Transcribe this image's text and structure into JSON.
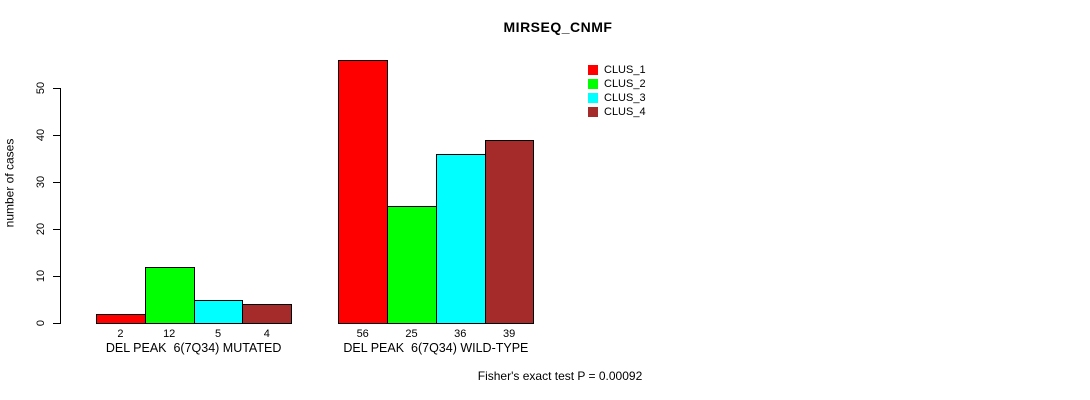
{
  "title": "MIRSEQ_CNMF",
  "annotation": "Fisher's exact test P = 0.00092",
  "chart_data": {
    "type": "bar",
    "title": "MIRSEQ_CNMF",
    "ylabel": "number of cases",
    "xlabel": "",
    "yticks": [
      0,
      10,
      20,
      30,
      40,
      50
    ],
    "ylim": [
      0,
      56
    ],
    "grid": false,
    "legend_position": "top-right",
    "categories": [
      "DEL PEAK  6(7Q34) MUTATED",
      "DEL PEAK  6(7Q34) WILD-TYPE"
    ],
    "series": [
      {
        "name": "CLUS_1",
        "color": "#ff0000",
        "values": [
          2,
          56
        ]
      },
      {
        "name": "CLUS_2",
        "color": "#00ff00",
        "values": [
          12,
          25
        ]
      },
      {
        "name": "CLUS_3",
        "color": "#00ffff",
        "values": [
          5,
          36
        ]
      },
      {
        "name": "CLUS_4",
        "color": "#a52a2a",
        "values": [
          4,
          39
        ]
      }
    ],
    "groups": [
      {
        "label": "DEL PEAK  6(7Q34) MUTATED",
        "values": [
          2,
          12,
          5,
          4
        ]
      },
      {
        "label": "DEL PEAK  6(7Q34) WILD-TYPE",
        "values": [
          56,
          25,
          36,
          39
        ]
      }
    ],
    "bar_border_color": "#000000",
    "annotation": "Fisher's exact test P = 0.00092"
  }
}
